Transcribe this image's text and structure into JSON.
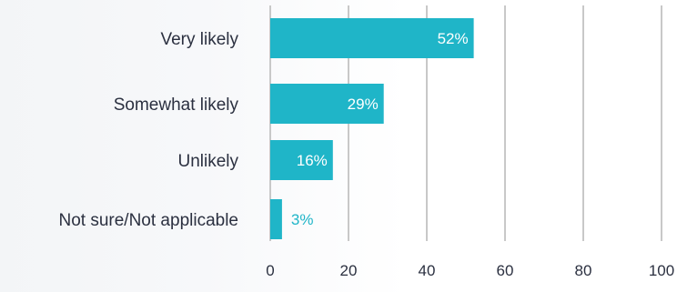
{
  "chart_data": {
    "type": "bar",
    "orientation": "horizontal",
    "categories": [
      "Very likely",
      "Somewhat likely",
      "Unlikely",
      "Not sure/Not applicable"
    ],
    "values": [
      52,
      29,
      16,
      3
    ],
    "value_labels": [
      "52%",
      "29%",
      "16%",
      "3%"
    ],
    "xlim": [
      0,
      100
    ],
    "xticks": [
      "0",
      "20",
      "40",
      "60",
      "80",
      "100"
    ],
    "title": "",
    "xlabel": "",
    "ylabel": "",
    "grid": true,
    "legend": "none",
    "bar_color": "#1fb5c8",
    "grid_color": "#c8c8c8",
    "inside_label_color": "#ffffff",
    "outside_label_color": "#1fb5c8"
  }
}
